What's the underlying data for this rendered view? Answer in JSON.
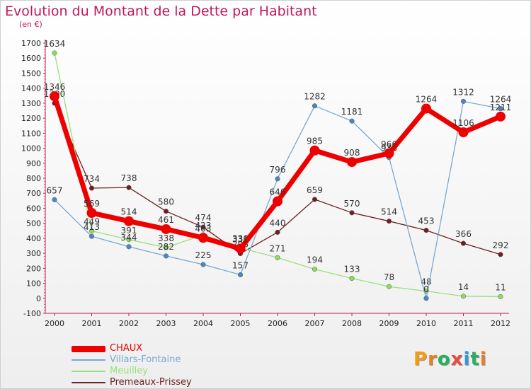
{
  "title": "Evolution du Montant de la Dette par Habitant",
  "unit": "(en €)",
  "logo": {
    "text": "Proxiti",
    "colors": [
      "#f39c12",
      "#e67e22",
      "#27ae60",
      "#e74c3c",
      "#3498db",
      "#27ae60",
      "#e67e22"
    ]
  },
  "chart_data": {
    "type": "line",
    "title": "Evolution du Montant de la Dette par Habitant",
    "ylabel": "(en €)",
    "xlabel": "",
    "x": [
      "2000",
      "2001",
      "2002",
      "2003",
      "2004",
      "2005",
      "2006",
      "2007",
      "2008",
      "2009",
      "2010",
      "2011",
      "2012"
    ],
    "ylim": [
      -100,
      1700
    ],
    "yticks": [
      -100,
      0,
      100,
      200,
      300,
      400,
      500,
      600,
      700,
      800,
      900,
      1000,
      1100,
      1200,
      1300,
      1400,
      1500,
      1600,
      1700
    ],
    "grid": false,
    "legend_position": "bottom-left",
    "series": [
      {
        "name": "Premeaux-Prissey",
        "color": "#6d1f23",
        "marker": "#6d1f23",
        "values": [
          1300,
          734,
          738,
          580,
          474,
          298,
          440,
          659,
          570,
          514,
          453,
          366,
          292
        ]
      },
      {
        "name": "Meuilley",
        "color": "#99e07a",
        "marker": "#8fdc5a",
        "values": [
          1634,
          449,
          391,
          338,
          423,
          336,
          271,
          194,
          133,
          78,
          48,
          14,
          11
        ]
      },
      {
        "name": "Villars-Fontaine",
        "color": "#78a9d2",
        "marker": "#4a86c0",
        "values": [
          657,
          413,
          344,
          282,
          225,
          157,
          796,
          1282,
          1181,
          938,
          0,
          1312,
          1264
        ]
      },
      {
        "name": "CHAUX",
        "color": "#ee0000",
        "marker": "#ee0000",
        "values": [
          1346,
          569,
          514,
          461,
          403,
          331,
          646,
          985,
          908,
          966,
          1264,
          1106,
          1211
        ]
      }
    ]
  }
}
